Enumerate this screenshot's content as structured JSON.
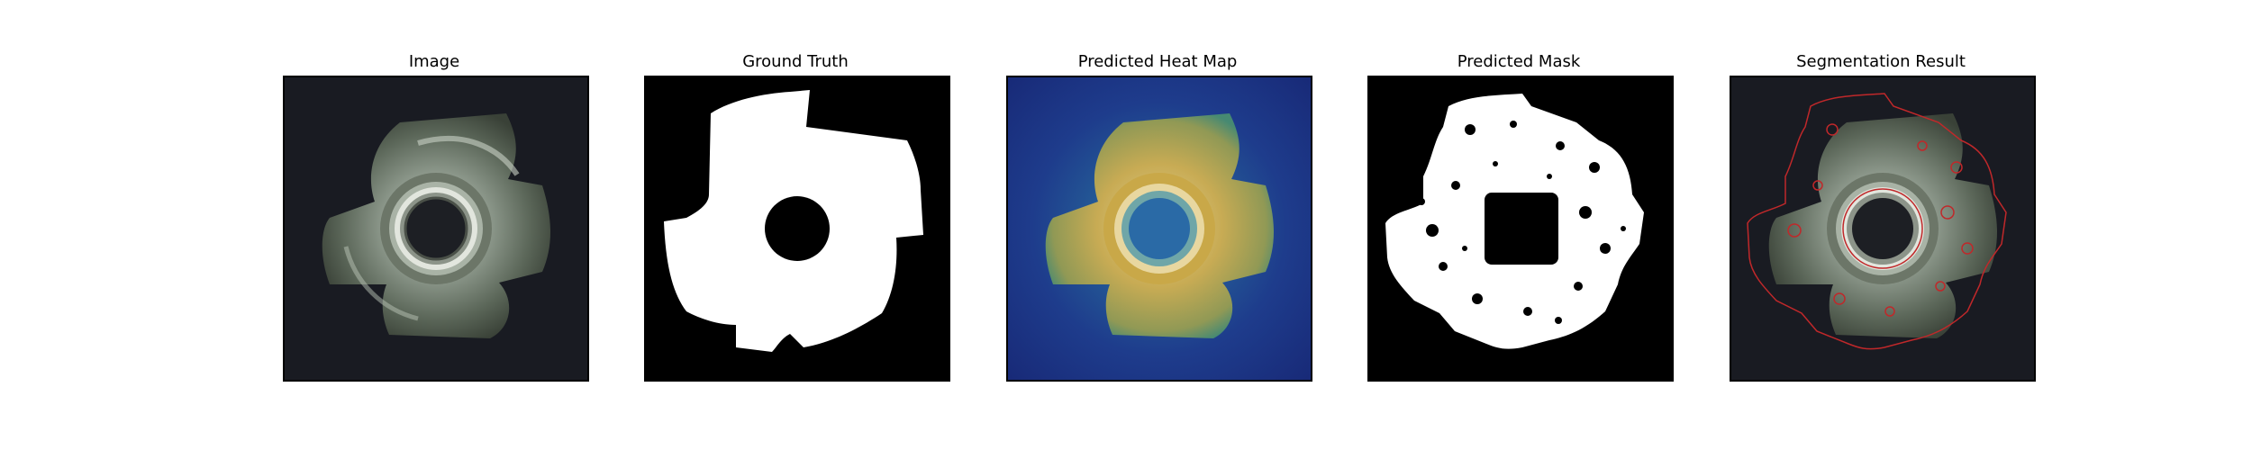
{
  "figure": {
    "panels": [
      {
        "title": "Image",
        "content": "metal-part-photo"
      },
      {
        "title": "Ground Truth",
        "content": "binary-mask"
      },
      {
        "title": "Predicted Heat Map",
        "content": "heatmap-overlay"
      },
      {
        "title": "Predicted Mask",
        "content": "binary-mask-noisy"
      },
      {
        "title": "Segmentation Result",
        "content": "contour-overlay"
      }
    ]
  },
  "colors": {
    "photo_background": "#191b22",
    "mask_foreground": "#ffffff",
    "mask_background": "#000000",
    "heatmap_low": "#1a2e86",
    "heatmap_high": "#d8b040",
    "contour": "#c0282a"
  }
}
